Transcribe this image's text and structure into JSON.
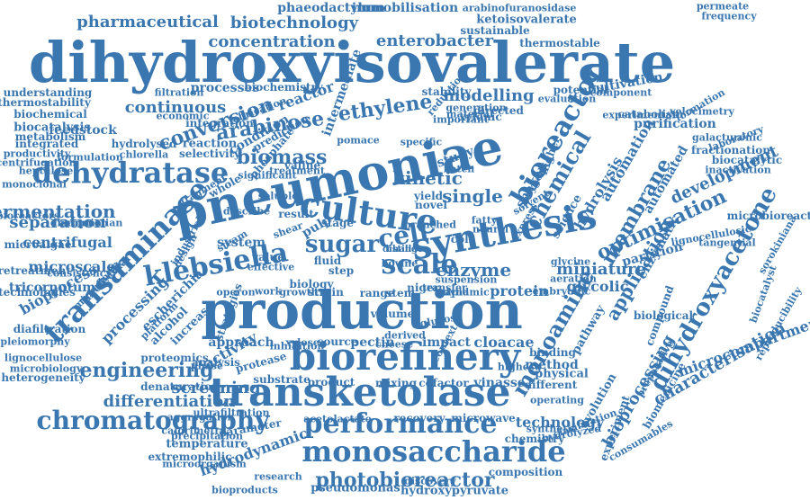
{
  "color": "#3a77b0",
  "words": [
    {
      "text": "dihydroxyisovalerate"
    },
    {
      "text": "pneumoniae"
    },
    {
      "text": "production"
    },
    {
      "text": "transketolase"
    },
    {
      "text": "biorefinery"
    },
    {
      "text": "culture"
    },
    {
      "text": "synthesis"
    },
    {
      "text": "monosaccharide"
    },
    {
      "text": "transaminase"
    },
    {
      "text": "klebsiella"
    },
    {
      "text": "bioreactor"
    },
    {
      "text": "dehydratase"
    },
    {
      "text": "chromatography"
    },
    {
      "text": "performance"
    },
    {
      "text": "dihydroxyacetone"
    },
    {
      "text": "sugar"
    },
    {
      "text": "scale"
    },
    {
      "text": "cell"
    },
    {
      "text": "chemical"
    },
    {
      "text": "engineering"
    },
    {
      "text": "photobioreactor"
    },
    {
      "text": "monoamine"
    },
    {
      "text": "conversion"
    },
    {
      "text": "biomass"
    },
    {
      "text": "arabinose"
    },
    {
      "text": "fermentation"
    },
    {
      "text": "membrane"
    },
    {
      "text": "optimisation"
    },
    {
      "text": "characterisation"
    },
    {
      "text": "application"
    },
    {
      "text": "pharmaceutical"
    },
    {
      "text": "biotechnology"
    },
    {
      "text": "concentration"
    },
    {
      "text": "enterobacter"
    },
    {
      "text": "ethylene"
    },
    {
      "text": "modelling"
    },
    {
      "text": "continuous"
    },
    {
      "text": "enzyme"
    },
    {
      "text": "miniature"
    },
    {
      "text": "kinetic"
    },
    {
      "text": "single"
    },
    {
      "text": "separation"
    },
    {
      "text": "centrifugal"
    },
    {
      "text": "microscale"
    },
    {
      "text": "tricornutum"
    },
    {
      "text": "bioprocess"
    },
    {
      "text": "differentiation"
    },
    {
      "text": "screening"
    },
    {
      "text": "hydrodynamic"
    },
    {
      "text": "bioprocessing"
    },
    {
      "text": "hydrolysis"
    },
    {
      "text": "automation"
    },
    {
      "text": "development"
    },
    {
      "text": "microcompartment"
    },
    {
      "text": "technology"
    },
    {
      "text": "temperature"
    },
    {
      "text": "pseudomonas"
    },
    {
      "text": "hydroxypyruvate"
    },
    {
      "text": "phaeodactylum"
    },
    {
      "text": "immobilisation"
    },
    {
      "text": "arabinofuranosidase"
    },
    {
      "text": "ketoisovalerate"
    },
    {
      "text": "sustainable"
    },
    {
      "text": "thermostable"
    },
    {
      "text": "processes"
    },
    {
      "text": "reactor"
    },
    {
      "text": "condition"
    },
    {
      "text": "protein"
    },
    {
      "text": "glycolic"
    },
    {
      "text": "processing"
    },
    {
      "text": "activity"
    },
    {
      "text": "pectin"
    },
    {
      "text": "impact"
    },
    {
      "text": "cloacae"
    },
    {
      "text": "vinasse"
    },
    {
      "text": "cofactor"
    },
    {
      "text": "mixing"
    },
    {
      "text": "product"
    },
    {
      "text": "recovery"
    },
    {
      "text": "microwave"
    },
    {
      "text": "chemistry"
    },
    {
      "text": "composition"
    },
    {
      "text": "extremophilic"
    },
    {
      "text": "parameter"
    },
    {
      "text": "feedstock"
    },
    {
      "text": "biocatalysis"
    },
    {
      "text": "integrated"
    },
    {
      "text": "metabolism"
    },
    {
      "text": "biochemical"
    },
    {
      "text": "understanding"
    },
    {
      "text": "thermostability"
    },
    {
      "text": "valine"
    },
    {
      "text": "reaction"
    },
    {
      "text": "selectivity"
    },
    {
      "text": "whole"
    },
    {
      "text": "system"
    },
    {
      "text": "value"
    },
    {
      "text": "pulp"
    },
    {
      "text": "stability"
    },
    {
      "text": "directed"
    },
    {
      "text": "xylonic"
    },
    {
      "text": "study"
    },
    {
      "text": "yield"
    },
    {
      "text": "coli"
    },
    {
      "text": "step"
    },
    {
      "text": "fluid"
    },
    {
      "text": "strain"
    },
    {
      "text": "stage"
    },
    {
      "text": "result"
    },
    {
      "text": "novel"
    },
    {
      "text": "potential"
    },
    {
      "text": "cultivation"
    },
    {
      "text": "catabolism"
    },
    {
      "text": "purification"
    },
    {
      "text": "fractionation"
    },
    {
      "text": "biocatalytic"
    },
    {
      "text": "inactivation"
    },
    {
      "text": "microbioreactor"
    },
    {
      "text": "sorokiniana"
    },
    {
      "text": "reproducibility"
    },
    {
      "text": "partition"
    },
    {
      "text": "enzymatic"
    },
    {
      "text": "automated"
    },
    {
      "text": "science"
    },
    {
      "text": "pathway"
    },
    {
      "text": "biomedicine"
    },
    {
      "text": "experiment"
    },
    {
      "text": "evolution"
    },
    {
      "text": "biological"
    },
    {
      "text": "compound"
    },
    {
      "text": "method"
    },
    {
      "text": "physical"
    },
    {
      "text": "different"
    },
    {
      "text": "binding"
    },
    {
      "text": "operating"
    },
    {
      "text": "synthetic"
    },
    {
      "text": "proteomics"
    },
    {
      "text": "denaturation"
    },
    {
      "text": "heterogeneity"
    },
    {
      "text": "microbiology"
    },
    {
      "text": "lignocellulose"
    },
    {
      "text": "diafiltration"
    },
    {
      "text": "pleiomorphy"
    },
    {
      "text": "technologies"
    },
    {
      "text": "pretreatment"
    },
    {
      "text": "microalgae"
    },
    {
      "text": "monoclonal"
    },
    {
      "text": "bioreactors"
    },
    {
      "text": "mammalian"
    },
    {
      "text": "heptulose"
    },
    {
      "text": "centrifugation"
    },
    {
      "text": "productivity"
    },
    {
      "text": "formulation"
    },
    {
      "text": "consistency"
    },
    {
      "text": "disruption"
    },
    {
      "text": "molecular"
    },
    {
      "text": "microfluidic"
    },
    {
      "text": "escherichia"
    },
    {
      "text": "alcohol"
    },
    {
      "text": "increase"
    },
    {
      "text": "platform"
    },
    {
      "text": "strategies"
    },
    {
      "text": "industrial"
    },
    {
      "text": "design"
    },
    {
      "text": "fragment"
    },
    {
      "text": "analysis"
    },
    {
      "text": "approach"
    },
    {
      "text": "protease"
    },
    {
      "text": "substrate"
    },
    {
      "text": "biology"
    },
    {
      "text": "source"
    },
    {
      "text": "volume"
    },
    {
      "text": "xylose"
    },
    {
      "text": "glucose"
    },
    {
      "text": "transfer"
    },
    {
      "text": "niger"
    },
    {
      "text": "stem"
    },
    {
      "text": "range"
    },
    {
      "text": "work"
    },
    {
      "text": "growth"
    },
    {
      "text": "operon"
    },
    {
      "text": "research"
    },
    {
      "text": "bioproducts"
    },
    {
      "text": "microorganism"
    },
    {
      "text": "precipitation"
    },
    {
      "text": "calorimetry"
    },
    {
      "text": "aggregation"
    },
    {
      "text": "ultrafiltration"
    },
    {
      "text": "acetolactate"
    },
    {
      "text": "discovery"
    },
    {
      "text": "hydrolyzed"
    },
    {
      "text": "clarification"
    },
    {
      "text": "consumables"
    },
    {
      "text": "preparative"
    },
    {
      "text": "biocatalyst"
    },
    {
      "text": "lignocellulosic"
    },
    {
      "text": "tangential"
    },
    {
      "text": "laboratory"
    },
    {
      "text": "galacturonic"
    },
    {
      "text": "velocimetry"
    },
    {
      "text": "formation"
    },
    {
      "text": "experimental"
    },
    {
      "text": "component"
    },
    {
      "text": "evaluation"
    },
    {
      "text": "generation"
    },
    {
      "text": "important"
    },
    {
      "text": "material"
    },
    {
      "text": "frequency"
    },
    {
      "text": "permeate"
    },
    {
      "text": "intermediate"
    },
    {
      "text": "biochemistry"
    },
    {
      "text": "filtration"
    },
    {
      "text": "economic"
    },
    {
      "text": "fabrication"
    },
    {
      "text": "integration"
    },
    {
      "text": "hydrolysed"
    },
    {
      "text": "chlorella"
    },
    {
      "text": "phosphate"
    },
    {
      "text": "prediction"
    },
    {
      "text": "specific"
    },
    {
      "text": "pomace"
    },
    {
      "text": "higher"
    },
    {
      "text": "shaken"
    },
    {
      "text": "oxygen"
    },
    {
      "text": "batch"
    },
    {
      "text": "embryonic"
    },
    {
      "text": "glycine"
    },
    {
      "text": "aeration"
    },
    {
      "text": "suspension"
    },
    {
      "text": "dynamic"
    },
    {
      "text": "rapid"
    },
    {
      "text": "neural"
    },
    {
      "text": "fatty"
    },
    {
      "text": "steam"
    },
    {
      "text": "shear"
    },
    {
      "text": "effective"
    },
    {
      "text": "derived"
    },
    {
      "text": "cheese"
    },
    {
      "text": "context"
    },
    {
      "text": "highest"
    },
    {
      "text": "phase"
    },
    {
      "text": "inhibition"
    },
    {
      "text": "branched"
    },
    {
      "text": "reduction"
    },
    {
      "text": "bovine"
    },
    {
      "text": "express"
    },
    {
      "text": "solvent"
    },
    {
      "text": "soluble"
    },
    {
      "text": "significant"
    },
    {
      "text": "treatment"
    },
    {
      "text": "describe"
    },
    {
      "text": "change"
    },
    {
      "text": "distillate"
    }
  ]
}
